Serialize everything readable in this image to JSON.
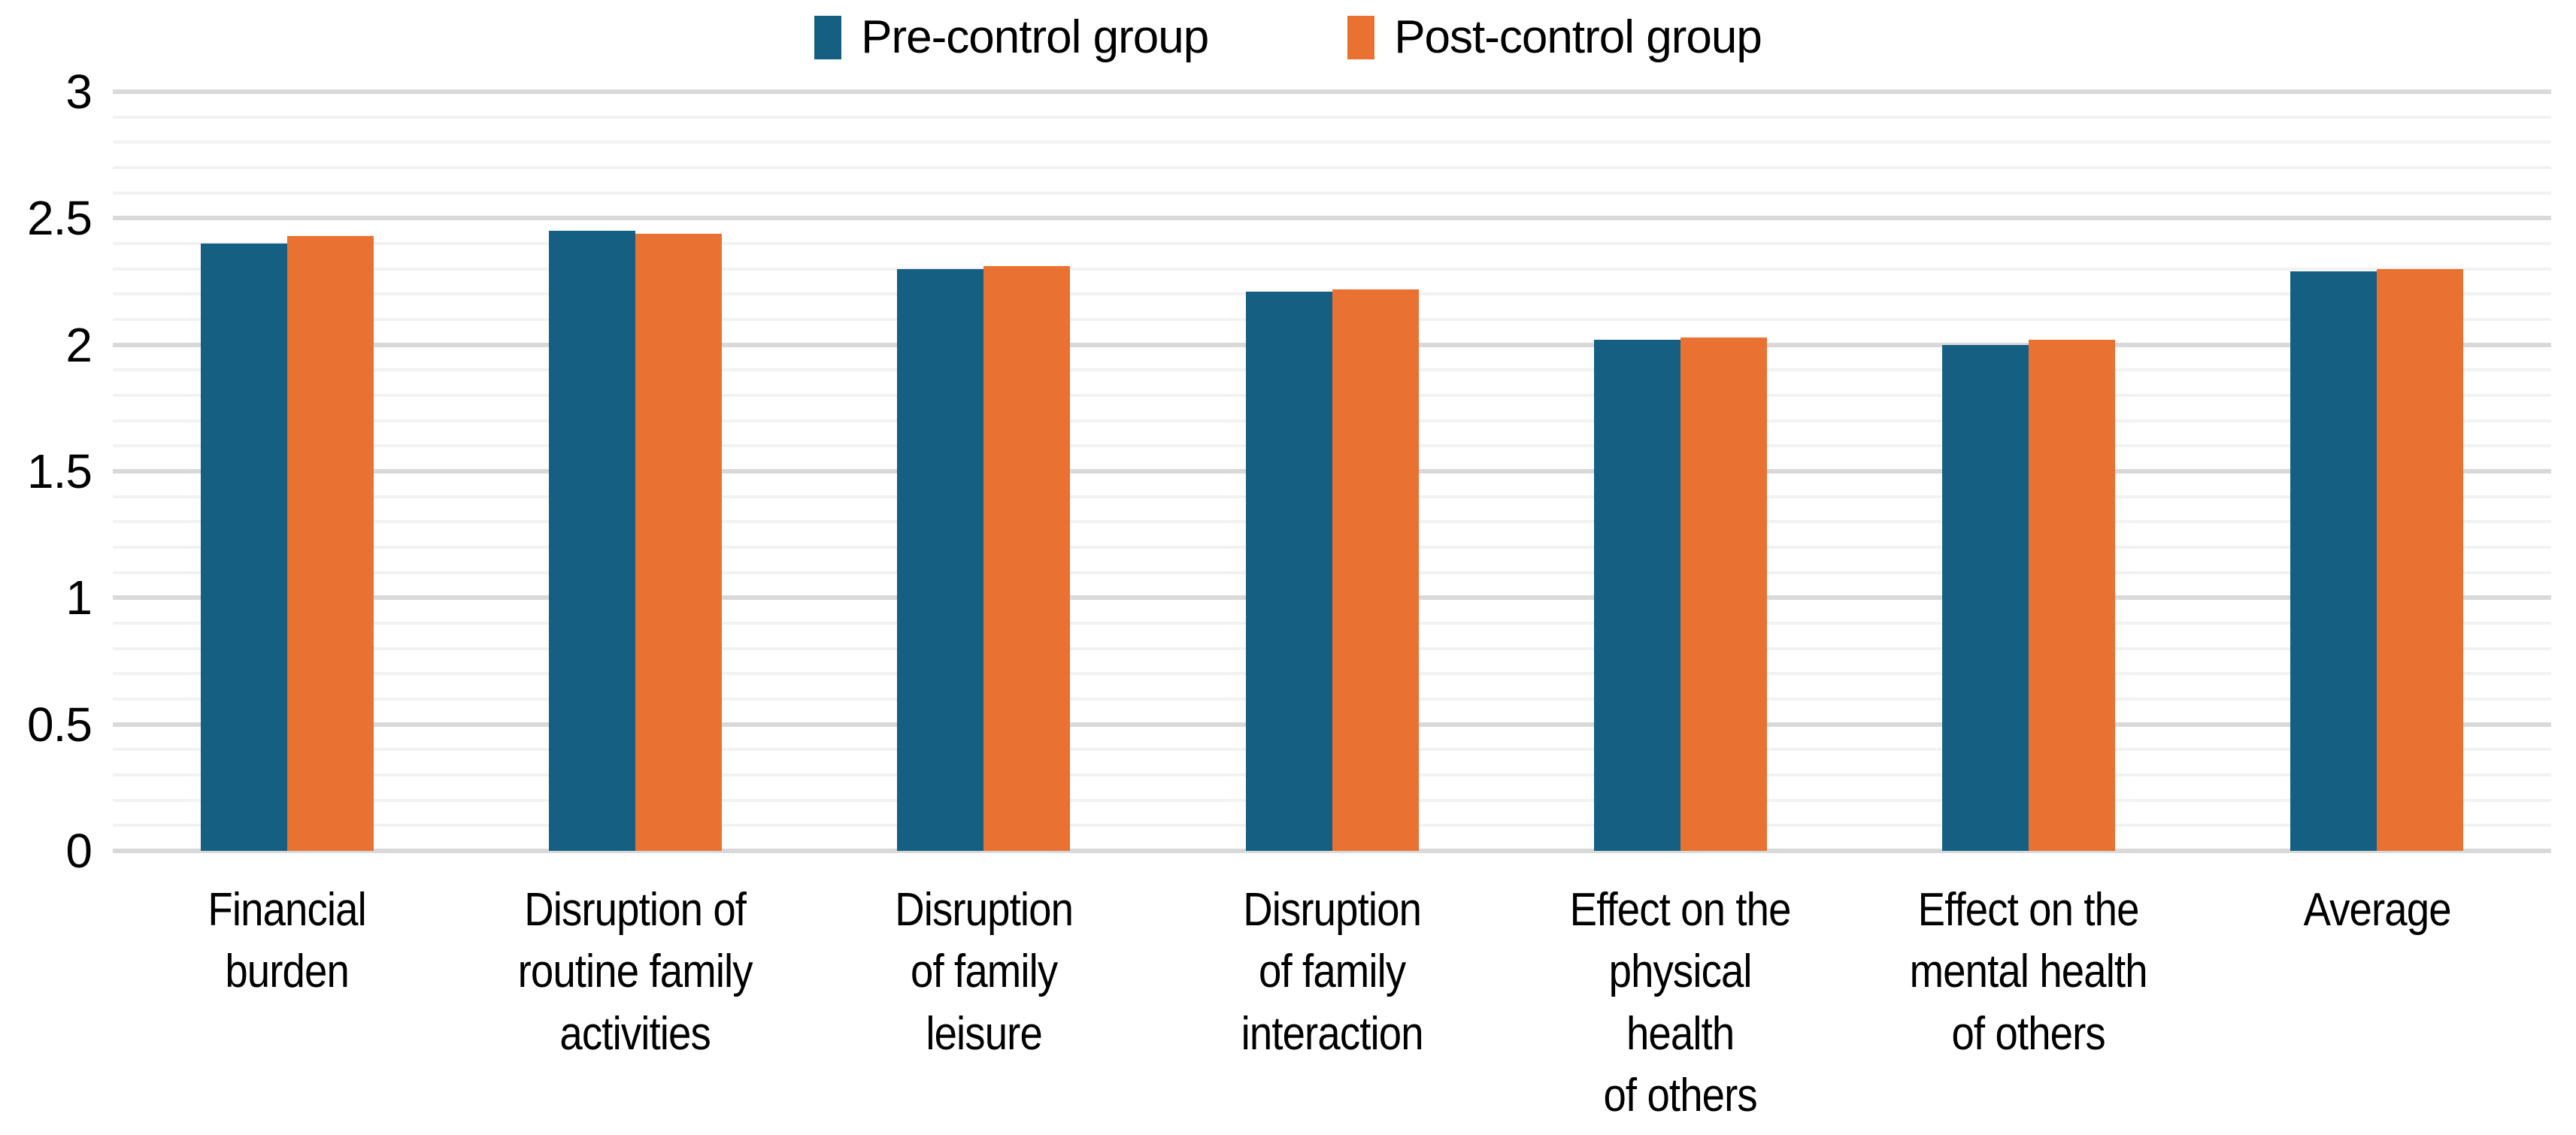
{
  "legend": {
    "items": [
      {
        "label": "Pre-control group",
        "color": "#156082"
      },
      {
        "label": "Post-control group",
        "color": "#E97132"
      }
    ]
  },
  "y_axis": {
    "tick_labels_bottom_to_top": [
      "0",
      "0.5",
      "1",
      "1.5",
      "2",
      "2.5",
      "3"
    ]
  },
  "chart_data": {
    "type": "bar",
    "title": "",
    "categories": [
      [
        "Financial",
        "burden"
      ],
      [
        "Disruption of",
        "routine family",
        "activities"
      ],
      [
        "Disruption",
        "of family",
        "leisure"
      ],
      [
        "Disruption",
        "of family",
        "interaction"
      ],
      [
        "Effect on the",
        "physical",
        "health",
        "of others"
      ],
      [
        "Effect on the",
        "mental health",
        "of others"
      ],
      [
        "Average"
      ]
    ],
    "series": [
      {
        "name": "Pre-control group",
        "color": "#156082",
        "values": [
          2.4,
          2.45,
          2.3,
          2.21,
          2.02,
          2.0,
          2.29
        ]
      },
      {
        "name": "Post-control group",
        "color": "#E97132",
        "values": [
          2.43,
          2.44,
          2.31,
          2.22,
          2.03,
          2.02,
          2.3
        ]
      }
    ],
    "xlabel": "",
    "ylabel": "",
    "ylim": [
      0,
      3
    ],
    "y_major_step": 0.5,
    "y_minor_step": 0.1,
    "grid": {
      "major_color": "#D9D9D9",
      "minor_color": "#F2F2F2",
      "minor_on": true
    },
    "legend_position": "top-center",
    "background": "#FFFFFF",
    "text_color": "#000000"
  }
}
